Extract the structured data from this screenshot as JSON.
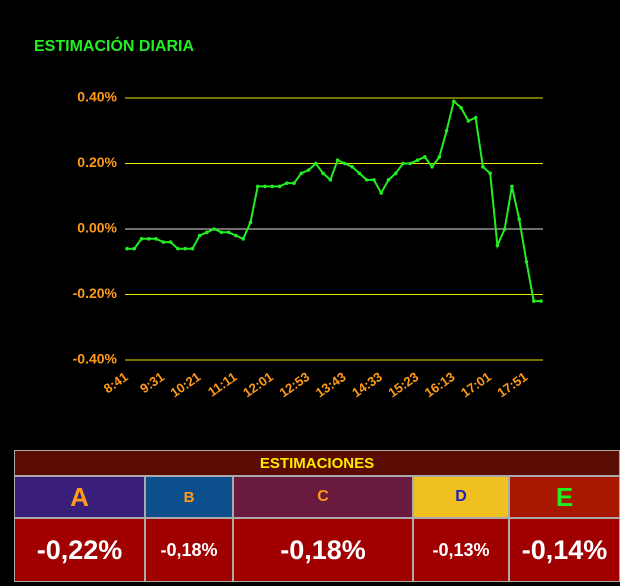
{
  "chart_data": {
    "type": "line",
    "title": "ESTIMACIÓN DIARIA",
    "color": "#22ee22",
    "grid": true,
    "categories": [
      "8:41",
      null,
      null,
      null,
      null,
      "9:31",
      null,
      null,
      null,
      null,
      "10:21",
      null,
      null,
      null,
      null,
      "11:11",
      null,
      null,
      null,
      null,
      "12:01",
      null,
      null,
      null,
      null,
      "12:53",
      null,
      null,
      null,
      null,
      "13:43",
      null,
      null,
      null,
      null,
      "14:33",
      null,
      null,
      null,
      null,
      "15:23",
      null,
      null,
      null,
      null,
      "16:13",
      null,
      null,
      null,
      null,
      "17:01",
      null,
      null,
      null,
      null,
      "17:51",
      null,
      null
    ],
    "values": [
      -0.06,
      -0.06,
      -0.03,
      -0.03,
      -0.03,
      -0.04,
      -0.04,
      -0.06,
      -0.06,
      -0.06,
      -0.02,
      -0.01,
      0.0,
      -0.01,
      -0.01,
      -0.02,
      -0.03,
      0.02,
      0.13,
      0.13,
      0.13,
      0.13,
      0.14,
      0.14,
      0.17,
      0.18,
      0.2,
      0.17,
      0.15,
      0.21,
      0.2,
      0.19,
      0.17,
      0.15,
      0.15,
      0.11,
      0.15,
      0.17,
      0.2,
      0.2,
      0.21,
      0.22,
      0.19,
      0.22,
      0.3,
      0.39,
      0.37,
      0.33,
      0.34,
      0.19,
      0.17,
      -0.05,
      0.0,
      0.13,
      0.03,
      -0.1,
      -0.22,
      -0.22
    ],
    "ylim": [
      -0.4,
      0.4
    ],
    "yticks": [
      {
        "value": 0.4,
        "label": "0.40%"
      },
      {
        "value": 0.2,
        "label": "0.20%"
      },
      {
        "value": 0,
        "label": "0.00%"
      },
      {
        "value": -0.2,
        "label": "-0.20%"
      },
      {
        "value": -0.4,
        "label": "-0.40%"
      }
    ]
  },
  "table": {
    "title": "ESTIMACIONES",
    "columns": [
      "A",
      "B",
      "C",
      "D",
      "E"
    ],
    "values": [
      "-0,22%",
      "-0,18%",
      "-0,18%",
      "-0,13%",
      "-0,14%"
    ]
  }
}
